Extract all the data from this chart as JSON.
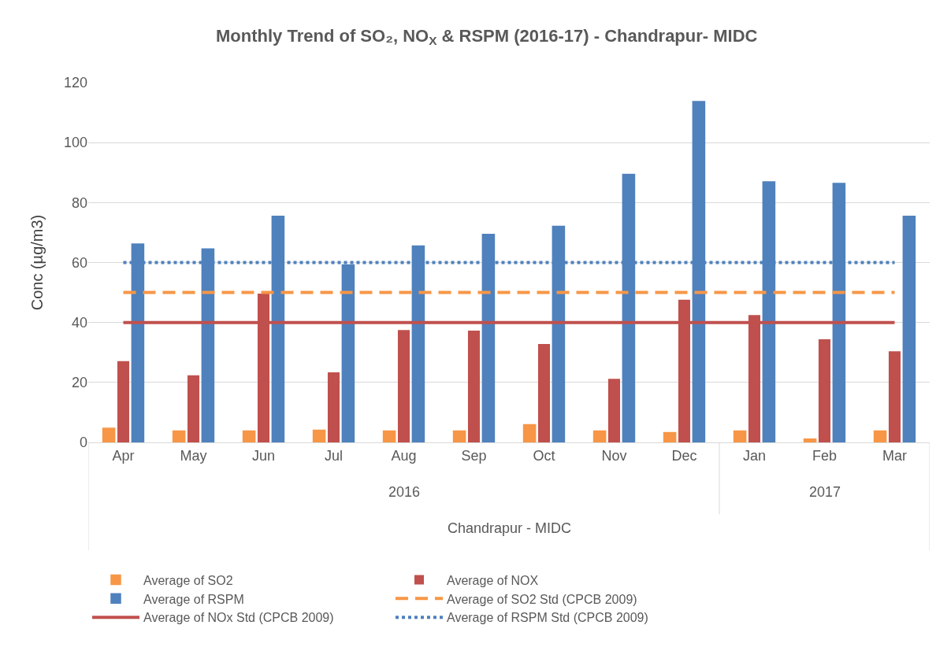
{
  "chart_data": {
    "type": "bar",
    "title": "Monthly Trend of SO₂, NO$_{X}$ & RSPM (2016-17) - Chandrapur- MIDC",
    "ylabel": "Conc (µg/m3)",
    "categories": [
      "Apr",
      "May",
      "Jun",
      "Jul",
      "Aug",
      "Sep",
      "Oct",
      "Nov",
      "Dec",
      "Jan",
      "Feb",
      "Mar"
    ],
    "annotations": [
      "2016",
      "2017",
      "Chandrapur - MIDC"
    ],
    "series": [
      {
        "name": "Average of SO2",
        "color": "#f79646",
        "values": [
          4.7,
          3.8,
          3.8,
          4.1,
          3.8,
          3.8,
          5.9,
          3.8,
          3.3,
          3.8,
          1.1,
          3.8
        ]
      },
      {
        "name": "Average of NOX",
        "color": "#c0504d",
        "values": [
          27.1,
          22.4,
          49.6,
          23.4,
          37.5,
          37.3,
          32.8,
          21.2,
          47.6,
          42.5,
          34.4,
          30.4
        ]
      },
      {
        "name": "Average of RSPM",
        "color": "#4f81bd",
        "values": [
          66.2,
          64.5,
          75.4,
          59.2,
          65.5,
          69.4,
          72.1,
          89.4,
          113.7,
          86.9,
          86.4,
          75.4
        ]
      },
      {
        "name": "Average of SO2 Std (CPCB 2009)",
        "type": "line",
        "line_style": "dashed",
        "color": "#f79646",
        "values": [
          50,
          50,
          50,
          50,
          50,
          50,
          50,
          50,
          50,
          50,
          50,
          50
        ]
      },
      {
        "name": "Average of NOx Std (CPCB 2009)",
        "type": "line",
        "line_style": "solid",
        "color": "#c0504d",
        "values": [
          40,
          40,
          40,
          40,
          40,
          40,
          40,
          40,
          40,
          40,
          40,
          40
        ]
      },
      {
        "name": "Average of RSPM Std (CPCB 2009)",
        "type": "line",
        "line_style": "dotted",
        "color": "#4f81bd",
        "values": [
          60,
          60,
          60,
          60,
          60,
          60,
          60,
          60,
          60,
          60,
          60,
          60
        ]
      }
    ],
    "ylim": [
      0,
      120
    ],
    "yticks": [
      0,
      20,
      40,
      60,
      80,
      100,
      120
    ],
    "grid": "y",
    "legend": "bottom",
    "marker": "none"
  }
}
